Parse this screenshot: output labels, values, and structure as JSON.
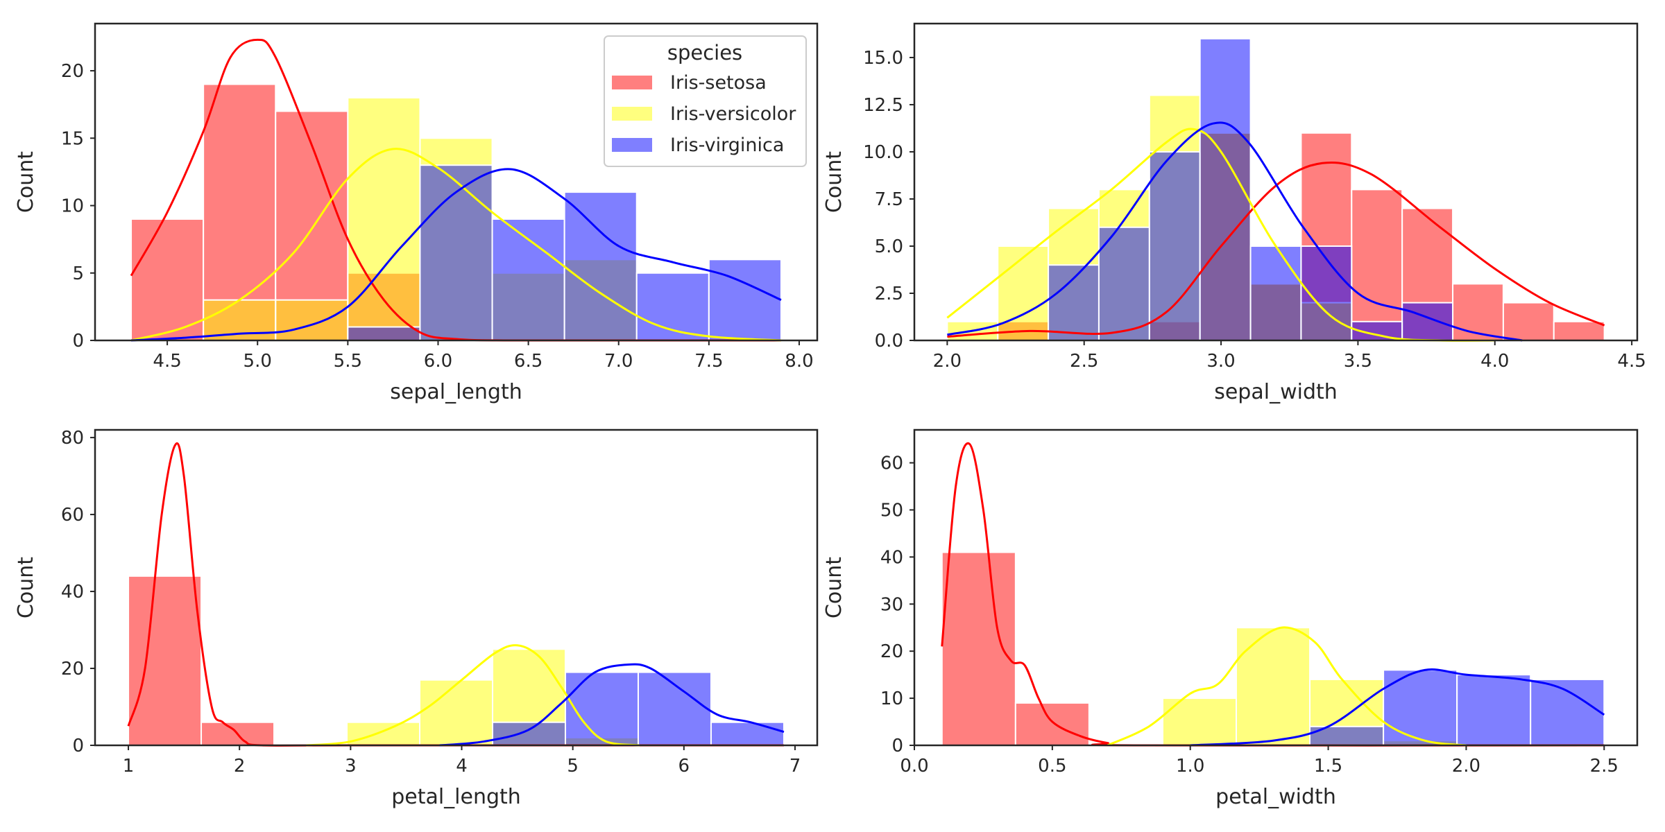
{
  "chart_data": [
    {
      "type": "bar",
      "xlabel": "sepal_length",
      "ylabel": "Count",
      "xlim": [
        4.1,
        8.1
      ],
      "ylim": [
        0,
        23.5
      ],
      "xticks": [
        4.5,
        5.0,
        5.5,
        6.0,
        6.5,
        7.0,
        7.5,
        8.0
      ],
      "xtick_labels": [
        "4.5",
        "5.0",
        "5.5",
        "6.0",
        "6.5",
        "7.0",
        "7.5",
        "8.0"
      ],
      "yticks": [
        0,
        5,
        10,
        15,
        20
      ],
      "ytick_labels": [
        "0",
        "5",
        "10",
        "15",
        "20"
      ],
      "bin_edges": [
        4.3,
        4.7,
        5.1,
        5.5,
        5.9,
        6.3,
        6.7,
        7.1,
        7.5,
        7.9
      ],
      "series": [
        {
          "name": "Iris-setosa",
          "color": "#ff0000",
          "values": [
            9,
            19,
            17,
            5,
            0,
            0,
            0,
            0,
            0
          ],
          "kde_x": [
            4.3,
            4.5,
            4.7,
            4.85,
            5.0,
            5.1,
            5.3,
            5.5,
            5.7,
            5.9,
            6.1,
            6.4,
            7.0,
            7.9
          ],
          "kde_y": [
            4.8,
            9.5,
            15.5,
            21.0,
            22.3,
            21.0,
            14.5,
            7.5,
            3.0,
            0.6,
            0.1,
            0,
            0,
            0
          ]
        },
        {
          "name": "Iris-versicolor",
          "color": "#ffff00",
          "values": [
            0,
            3,
            3,
            18,
            15,
            5,
            6,
            0,
            0
          ],
          "kde_x": [
            4.3,
            4.6,
            4.9,
            5.2,
            5.5,
            5.75,
            6.0,
            6.3,
            6.6,
            6.9,
            7.2,
            7.5,
            7.9
          ],
          "kde_y": [
            0,
            1.0,
            3.0,
            6.5,
            12.0,
            14.2,
            12.8,
            9.5,
            6.5,
            3.5,
            1.2,
            0.3,
            0
          ]
        },
        {
          "name": "Iris-virginica",
          "color": "#0000ff",
          "values": [
            0,
            0,
            0,
            1,
            13,
            9,
            11,
            5,
            6
          ],
          "kde_x": [
            4.3,
            4.6,
            4.9,
            5.2,
            5.5,
            5.8,
            6.1,
            6.4,
            6.7,
            7.0,
            7.3,
            7.6,
            7.9
          ],
          "kde_y": [
            0,
            0.2,
            0.5,
            0.8,
            2.5,
            7.0,
            11.0,
            12.7,
            10.5,
            7.0,
            5.8,
            4.8,
            3.0
          ]
        }
      ]
    },
    {
      "type": "bar",
      "xlabel": "sepal_width",
      "ylabel": "Count",
      "xlim": [
        1.88,
        4.52
      ],
      "ylim": [
        0,
        16.8
      ],
      "xticks": [
        2.0,
        2.5,
        3.0,
        3.5,
        4.0,
        4.5
      ],
      "xtick_labels": [
        "2.0",
        "2.5",
        "3.0",
        "3.5",
        "4.0",
        "4.5"
      ],
      "yticks": [
        0,
        2.5,
        5.0,
        7.5,
        10.0,
        12.5,
        15.0
      ],
      "ytick_labels": [
        "0.0",
        "2.5",
        "5.0",
        "7.5",
        "10.0",
        "12.5",
        "15.0"
      ],
      "bin_edges": [
        2.0,
        2.1846,
        2.3692,
        2.5538,
        2.7385,
        2.9231,
        3.1077,
        3.2923,
        3.4769,
        3.6615,
        3.8462,
        4.0308,
        4.2154,
        4.4
      ],
      "series": [
        {
          "name": "Iris-setosa",
          "color": "#ff0000",
          "values": [
            0,
            1,
            0,
            0,
            1,
            11,
            3,
            11,
            8,
            7,
            3,
            2,
            1
          ],
          "kde_x": [
            2.0,
            2.3,
            2.6,
            2.8,
            3.0,
            3.2,
            3.37,
            3.55,
            3.8,
            4.0,
            4.2,
            4.4
          ],
          "kde_y": [
            0.2,
            0.5,
            0.4,
            1.5,
            5.0,
            8.2,
            9.4,
            8.8,
            6.0,
            3.8,
            2.0,
            0.8
          ]
        },
        {
          "name": "Iris-versicolor",
          "color": "#ffff00",
          "values": [
            1,
            5,
            7,
            8,
            13,
            11,
            3,
            2,
            0,
            0,
            0,
            0,
            0
          ],
          "kde_x": [
            2.0,
            2.2,
            2.4,
            2.6,
            2.8,
            2.9,
            3.0,
            3.2,
            3.4,
            3.6,
            3.8,
            4.0
          ],
          "kde_y": [
            1.2,
            3.5,
            5.8,
            8.0,
            10.5,
            11.2,
            10.0,
            5.0,
            1.3,
            0.2,
            0,
            0
          ]
        },
        {
          "name": "Iris-virginica",
          "color": "#0000ff",
          "values": [
            0,
            0,
            4,
            6,
            10,
            16,
            5,
            5,
            1,
            2,
            0,
            0,
            0
          ],
          "kde_x": [
            2.0,
            2.2,
            2.4,
            2.6,
            2.8,
            2.97,
            3.1,
            3.3,
            3.5,
            3.7,
            3.9,
            4.1
          ],
          "kde_y": [
            0.3,
            0.9,
            2.5,
            5.5,
            9.5,
            11.5,
            10.5,
            6.0,
            2.5,
            1.5,
            0.5,
            0
          ]
        }
      ]
    },
    {
      "type": "bar",
      "xlabel": "petal_length",
      "ylabel": "Count",
      "xlim": [
        0.7,
        7.2
      ],
      "ylim": [
        0,
        82
      ],
      "xticks": [
        1,
        2,
        3,
        4,
        5,
        6,
        7
      ],
      "xtick_labels": [
        "1",
        "2",
        "3",
        "4",
        "5",
        "6",
        "7"
      ],
      "yticks": [
        0,
        20,
        40,
        60,
        80
      ],
      "ytick_labels": [
        "0",
        "20",
        "40",
        "60",
        "80"
      ],
      "bin_edges": [
        1.0,
        1.6556,
        2.3111,
        2.9667,
        3.6222,
        4.2778,
        4.9333,
        5.5889,
        6.2444,
        6.9
      ],
      "series": [
        {
          "name": "Iris-setosa",
          "color": "#ff0000",
          "values": [
            44,
            6,
            0,
            0,
            0,
            0,
            0,
            0,
            0
          ],
          "kde_x": [
            1.0,
            1.15,
            1.3,
            1.42,
            1.5,
            1.62,
            1.75,
            1.85,
            1.95,
            2.05,
            2.2,
            3.0,
            6.9
          ],
          "kde_y": [
            5,
            20,
            60,
            78,
            70,
            35,
            10,
            6,
            4,
            1,
            0,
            0,
            0
          ]
        },
        {
          "name": "Iris-versicolor",
          "color": "#ffff00",
          "values": [
            0,
            0,
            0,
            6,
            17,
            25,
            2,
            0,
            0
          ],
          "kde_x": [
            2.6,
            3.0,
            3.4,
            3.7,
            4.0,
            4.3,
            4.5,
            4.7,
            4.9,
            5.1,
            5.3,
            5.6
          ],
          "kde_y": [
            0,
            1,
            5,
            10,
            17,
            24,
            26,
            23,
            15,
            6,
            1,
            0
          ]
        },
        {
          "name": "Iris-virginica",
          "color": "#0000ff",
          "values": [
            0,
            0,
            0,
            0,
            0,
            6,
            19,
            19,
            6
          ],
          "kde_x": [
            3.8,
            4.2,
            4.6,
            4.9,
            5.2,
            5.5,
            5.7,
            6.0,
            6.3,
            6.6,
            6.9
          ],
          "kde_y": [
            0,
            1,
            4,
            11,
            19,
            21,
            20,
            14,
            8,
            6,
            3.5
          ]
        }
      ]
    },
    {
      "type": "bar",
      "xlabel": "petal_width",
      "ylabel": "Count",
      "xlim": [
        0,
        2.62
      ],
      "ylim": [
        0,
        67
      ],
      "xticks": [
        0.0,
        0.5,
        1.0,
        1.5,
        2.0,
        2.5
      ],
      "xtick_labels": [
        "0.0",
        "0.5",
        "1.0",
        "1.5",
        "2.0",
        "2.5"
      ],
      "yticks": [
        0,
        10,
        20,
        30,
        40,
        50,
        60
      ],
      "ytick_labels": [
        "0",
        "10",
        "20",
        "30",
        "40",
        "50",
        "60"
      ],
      "bin_edges": [
        0.1,
        0.3667,
        0.6333,
        0.9,
        1.1667,
        1.4333,
        1.7,
        1.9667,
        2.2333,
        2.5
      ],
      "series": [
        {
          "name": "Iris-setosa",
          "color": "#ff0000",
          "values": [
            41,
            9,
            0,
            0,
            0,
            0,
            0,
            0,
            0
          ],
          "kde_x": [
            0.1,
            0.15,
            0.2,
            0.25,
            0.3,
            0.35,
            0.4,
            0.45,
            0.5,
            0.6,
            0.7,
            0.8,
            2.5
          ],
          "kde_y": [
            21,
            55,
            64,
            50,
            25,
            18,
            17,
            10,
            5,
            2,
            0.5,
            0,
            0
          ]
        },
        {
          "name": "Iris-versicolor",
          "color": "#ffff00",
          "values": [
            0,
            0,
            0,
            10,
            25,
            14,
            1,
            0,
            0
          ],
          "kde_x": [
            0.7,
            0.85,
            1.0,
            1.1,
            1.2,
            1.33,
            1.45,
            1.55,
            1.7,
            1.85,
            2.0
          ],
          "kde_y": [
            0,
            4,
            11,
            13,
            20,
            25,
            22,
            14,
            5,
            1,
            0
          ]
        },
        {
          "name": "Iris-virginica",
          "color": "#0000ff",
          "values": [
            0,
            0,
            0,
            0,
            0,
            4,
            16,
            15,
            14
          ],
          "kde_x": [
            1.0,
            1.3,
            1.5,
            1.7,
            1.85,
            2.0,
            2.2,
            2.35,
            2.5
          ],
          "kde_y": [
            0,
            1,
            4,
            12,
            16,
            15,
            14,
            12,
            6.5
          ]
        }
      ]
    }
  ],
  "legend": {
    "title": "species",
    "placement": "upper right of first subplot",
    "entries": [
      "Iris-setosa",
      "Iris-versicolor",
      "Iris-virginica"
    ]
  }
}
